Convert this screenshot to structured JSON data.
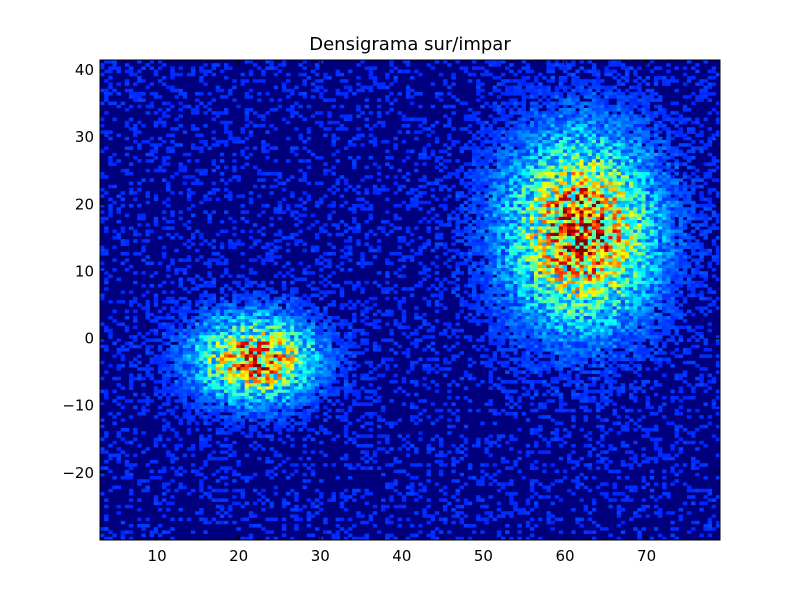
{
  "chart_data": {
    "type": "heatmap",
    "title": "Densigrama sur/impar",
    "xlabel": "",
    "ylabel": "",
    "xlim": [
      3,
      79
    ],
    "ylim": [
      -30,
      41.5
    ],
    "x_ticks": [
      10,
      20,
      30,
      40,
      50,
      60,
      70
    ],
    "y_ticks": [
      -20,
      -10,
      0,
      10,
      20,
      30,
      40
    ],
    "grid": false,
    "legend": "none",
    "colormap": "jet",
    "background_color": "#00007f",
    "bins": {
      "nx": 150,
      "ny": 150
    },
    "clusters": [
      {
        "center": [
          62,
          16
        ],
        "spread": [
          5.5,
          8.5
        ],
        "peak_density": 0.62
      },
      {
        "center": [
          22,
          -3
        ],
        "spread": [
          4.5,
          3.8
        ],
        "peak_density": 0.58
      }
    ],
    "background_density": 0.03
  }
}
